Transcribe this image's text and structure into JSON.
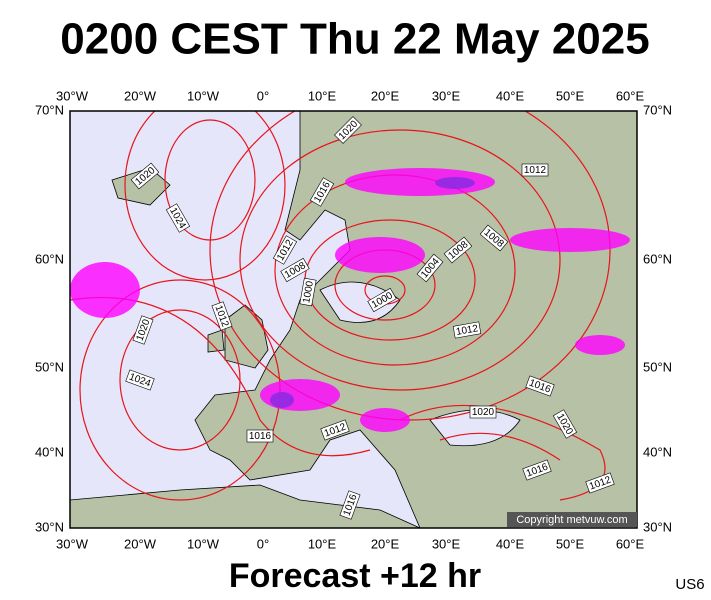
{
  "header": {
    "title": "0200 CEST Thu 22 May 2025"
  },
  "axes": {
    "longitudes": [
      "30°W",
      "20°W",
      "10°W",
      "0°",
      "10°E",
      "20°E",
      "30°E",
      "40°E",
      "50°E",
      "60°E"
    ],
    "latitudes": [
      "70°N",
      "60°N",
      "50°N",
      "40°N",
      "30°N"
    ]
  },
  "isobar_labels": [
    "1020",
    "1020",
    "1024",
    "1016",
    "1012",
    "1012",
    "1008",
    "1008",
    "1008",
    "1004",
    "1000",
    "1000",
    "1020",
    "1012",
    "1024",
    "1012",
    "1016",
    "1020",
    "1020",
    "1016",
    "1012",
    "1016",
    "1012",
    "1016"
  ],
  "copyright": "Copyright metvuw.com",
  "footer": {
    "forecast": "Forecast +12 hr",
    "code": "US6"
  }
}
